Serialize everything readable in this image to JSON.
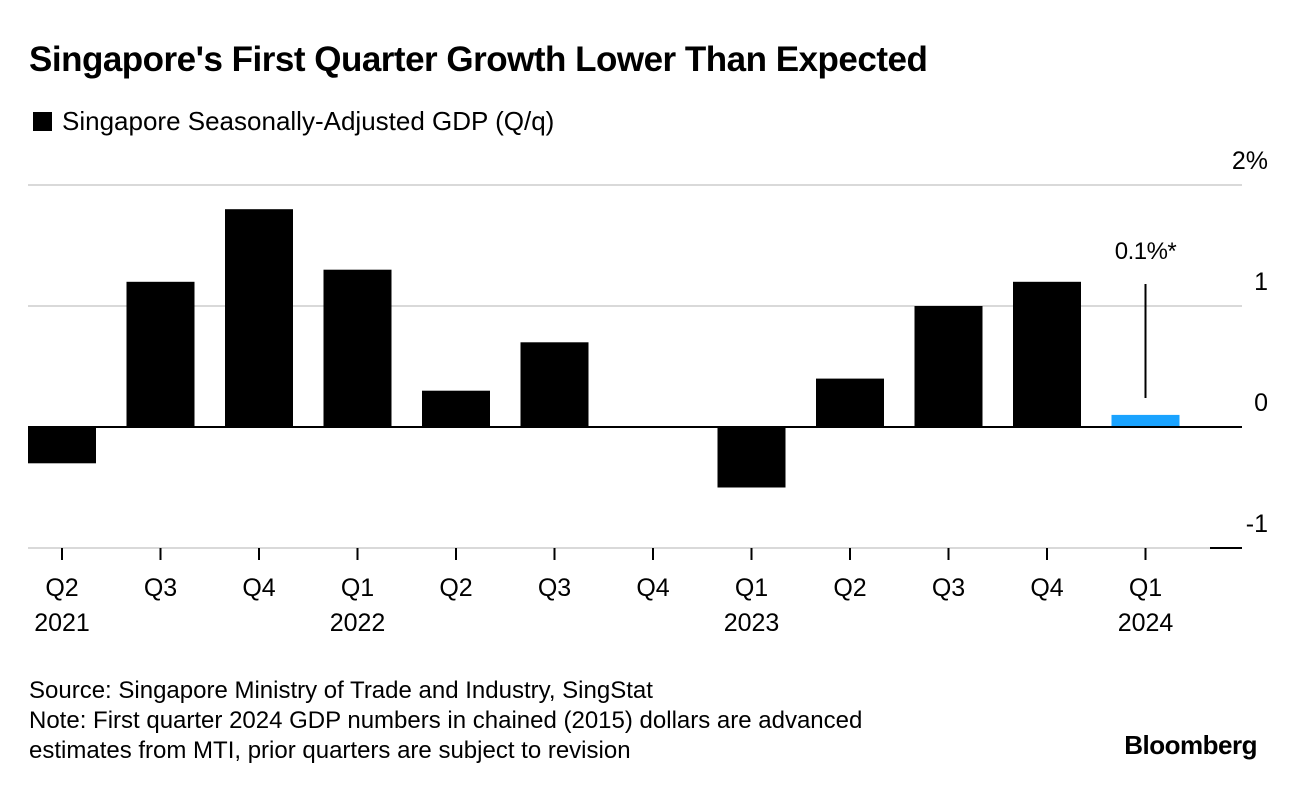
{
  "header": {
    "title": "Singapore's First Quarter Growth Lower Than Expected",
    "legend_label": "Singapore Seasonally-Adjusted GDP (Q/q)"
  },
  "chart_data": {
    "type": "bar",
    "title": "Singapore's First Quarter Growth Lower Than Expected",
    "xlabel": "",
    "ylabel": "",
    "ylim": [
      -1,
      2
    ],
    "y_ticks": [
      2,
      1,
      0,
      -1
    ],
    "y_tick_labels": [
      "2%",
      "1",
      "0",
      "-1"
    ],
    "categories": [
      "Q2 2021",
      "Q3 2021",
      "Q4 2021",
      "Q1 2022",
      "Q2 2022",
      "Q3 2022",
      "Q4 2022",
      "Q1 2023",
      "Q2 2023",
      "Q3 2023",
      "Q4 2023",
      "Q1 2024"
    ],
    "quarter_labels": [
      "Q2",
      "Q3",
      "Q4",
      "Q1",
      "Q2",
      "Q3",
      "Q4",
      "Q1",
      "Q2",
      "Q3",
      "Q4",
      "Q1"
    ],
    "year_labels": [
      "2021",
      "",
      "",
      "2022",
      "",
      "",
      "",
      "2023",
      "",
      "",
      "",
      "2024"
    ],
    "series": [
      {
        "name": "Singapore Seasonally-Adjusted GDP (Q/q)",
        "values": [
          -0.3,
          1.2,
          1.8,
          1.3,
          0.3,
          0.7,
          0.0,
          -0.5,
          0.4,
          1.0,
          1.2,
          0.1
        ]
      }
    ],
    "highlight_index": 11,
    "bar_color": "#000000",
    "highlight_color": "#1aa3ff",
    "grid": true,
    "legend": "top-left",
    "annotation": {
      "category": "Q1 2024",
      "text": "0.1%*"
    }
  },
  "footer": {
    "source": "Source: Singapore Ministry of Trade and Industry, SingStat",
    "note_line1": "Note: First quarter 2024 GDP numbers in chained (2015) dollars are advanced",
    "note_line2": "estimates from MTI, prior quarters are subject to revision",
    "brand": "Bloomberg"
  }
}
